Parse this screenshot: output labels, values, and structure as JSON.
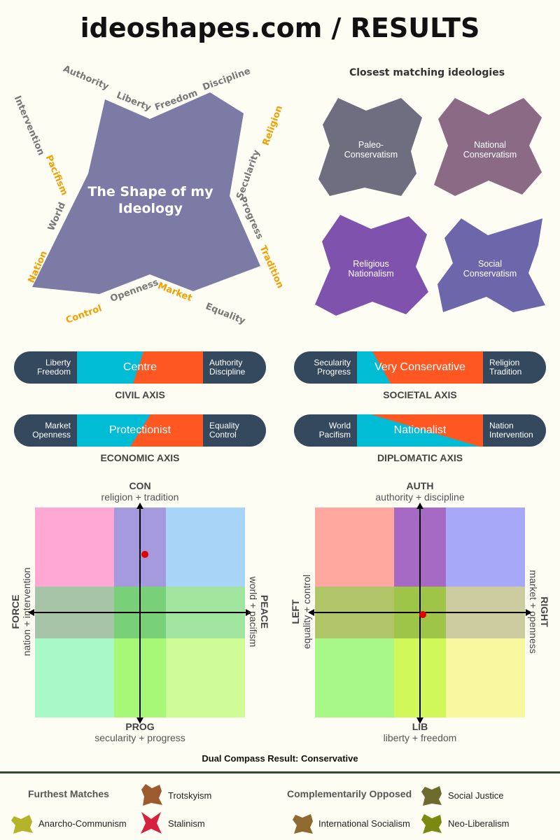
{
  "title": "ideoshapes.com / RESULTS",
  "shape": {
    "title_line1": "The Shape of my",
    "title_line2": "Ideology",
    "color": "#7b7ba6",
    "labels": {
      "authority": "Authority",
      "liberty": "Liberty",
      "freedom": "Freedom",
      "discipline": "Discipline",
      "intervention": "Intervention",
      "pacifism": "Pacifism",
      "world": "World",
      "nation": "Nation",
      "religion": "Religion",
      "secularity": "Secularity",
      "progress": "Progress",
      "tradition": "Tradition",
      "control": "Control",
      "openness": "Openness",
      "market": "Market",
      "equality": "Equality"
    }
  },
  "closest": {
    "title": "Closest matching ideologies",
    "items": [
      {
        "line1": "Paleo-",
        "line2": "Conservatism",
        "color": "#6e6e80"
      },
      {
        "line1": "National",
        "line2": "Conservatism",
        "color": "#8a6a85"
      },
      {
        "line1": "Religious",
        "line2": "Nationalism",
        "color": "#7f52ad"
      },
      {
        "line1": "Social",
        "line2": "Conservatism",
        "color": "#6c66aa"
      }
    ]
  },
  "axes": [
    {
      "name": "CIVIL AXIS",
      "left1": "Liberty",
      "left2": "Freedom",
      "right1": "Authority",
      "right2": "Discipline",
      "result": "Centre"
    },
    {
      "name": "SOCIETAL AXIS",
      "left1": "Secularity",
      "left2": "Progress",
      "right1": "Religion",
      "right2": "Tradition",
      "result": "Very Conservative"
    },
    {
      "name": "ECONOMIC AXIS",
      "left1": "Market",
      "left2": "Openness",
      "right1": "Equality",
      "right2": "Control",
      "result": "Protectionist"
    },
    {
      "name": "DIPLOMATIC AXIS",
      "left1": "World",
      "left2": "Pacifism",
      "right1": "Nation",
      "right2": "Intervention",
      "result": "Nationalist"
    }
  ],
  "colors": {
    "bar_bg": "#34495e",
    "cyan": "#00bcd4",
    "orange": "#ff5722",
    "point": "#e00000"
  },
  "compass1": {
    "top_label": "CON",
    "top_sub": "religion + tradition",
    "bottom_label": "PROG",
    "bottom_sub": "secularity + progress",
    "left_label": "FORCE",
    "left_sub": "nation + intervention",
    "right_label": "PEACE",
    "right_sub": "world + pacifism"
  },
  "compass2": {
    "top_label": "AUTH",
    "top_sub": "authority + discipline",
    "bottom_label": "LIB",
    "bottom_sub": "liberty + freedom",
    "left_label": "LEFT",
    "left_sub": "equality + control",
    "right_label": "RIGHT",
    "right_sub": "market + openness"
  },
  "compass_result": "Dual Compass Result: Conservative",
  "footer": {
    "furthest_title": "Furthest Matches",
    "opposed_title": "Complementarily Opposed",
    "items": [
      {
        "label": "Trotskyism",
        "color": "#9c5a2e"
      },
      {
        "label": "Anarcho-Communism",
        "color": "#b5b32a"
      },
      {
        "label": "Stalinism",
        "color": "#d4213d"
      },
      {
        "label": "Social Justice",
        "color": "#6b6b2e"
      },
      {
        "label": "International Socialism",
        "color": "#8e6a30"
      },
      {
        "label": "Neo-Liberalism",
        "color": "#7a8a10"
      }
    ]
  }
}
